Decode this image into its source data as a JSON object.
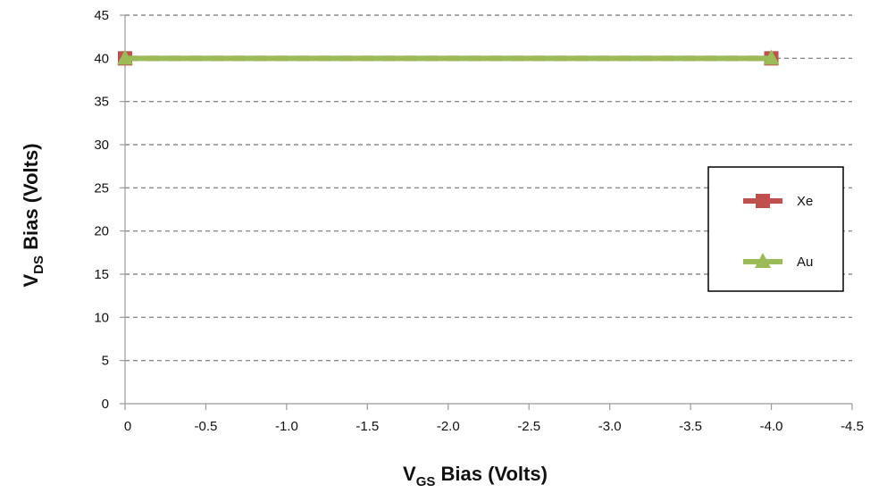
{
  "chart_data": {
    "type": "line",
    "x": [
      0,
      -4.0
    ],
    "series": [
      {
        "name": "Xe",
        "values": [
          40,
          40
        ],
        "color": "#c0504d",
        "marker": "square",
        "line_style": "dashed"
      },
      {
        "name": "Au",
        "values": [
          40,
          40
        ],
        "color": "#9bbb59",
        "marker": "triangle",
        "line_style": "solid"
      }
    ],
    "xlabel": {
      "main": "V",
      "sub": "GS",
      "rest": " Bias (Volts)"
    },
    "ylabel": {
      "main": "V",
      "sub": "DS",
      "rest": " Bias (Volts)"
    },
    "xlim": [
      0,
      -4.5
    ],
    "ylim": [
      0,
      45
    ],
    "x_ticks": [
      "0",
      "-0.5",
      "-1.0",
      "-1.5",
      "-2.0",
      "-2.5",
      "-3.0",
      "-3.5",
      "-4.0",
      "-4.5"
    ],
    "x_tick_values": [
      0,
      -0.5,
      -1.0,
      -1.5,
      -2.0,
      -2.5,
      -3.0,
      -3.5,
      -4.0,
      -4.5
    ],
    "y_ticks": [
      "0",
      "5",
      "10",
      "15",
      "20",
      "25",
      "30",
      "35",
      "40",
      "45"
    ],
    "y_tick_values": [
      0,
      5,
      10,
      15,
      20,
      25,
      30,
      35,
      40,
      45
    ],
    "grid": "horizontal dashed",
    "legend_position": "right"
  }
}
